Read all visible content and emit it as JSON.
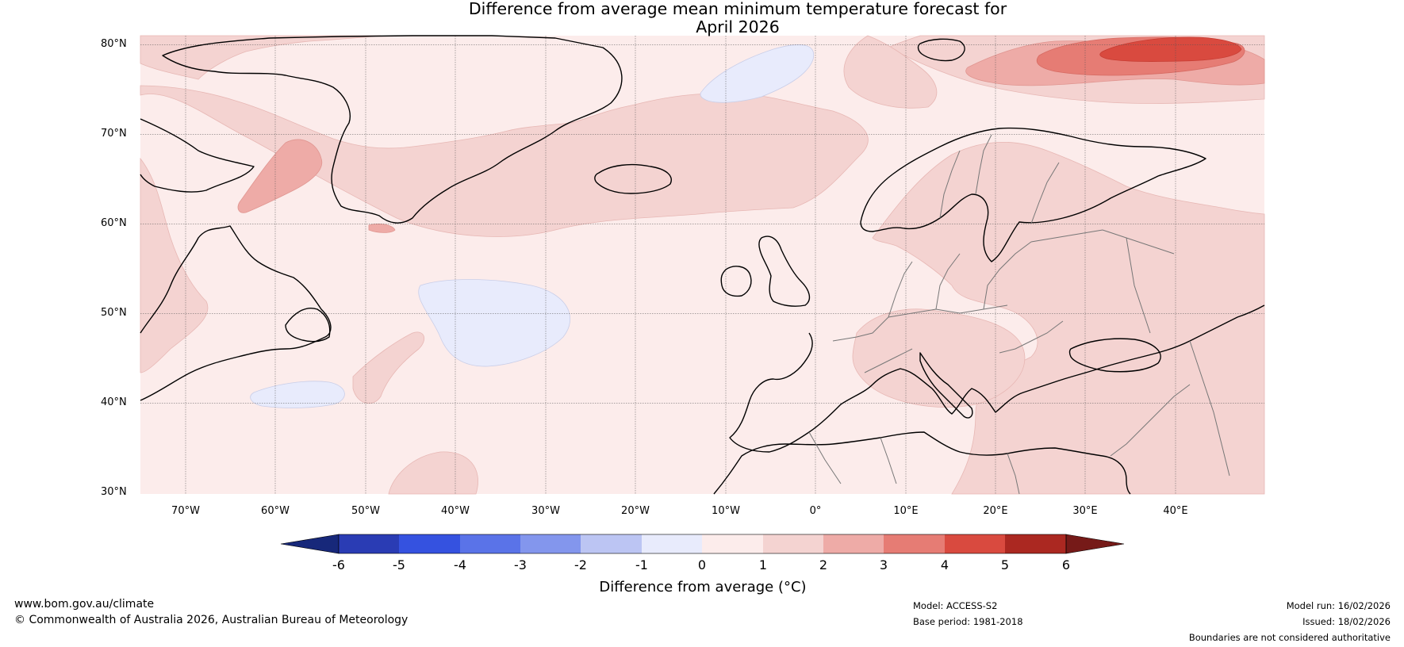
{
  "title": {
    "line1": "Difference from average mean minimum temperature forecast for",
    "line2": "April 2026"
  },
  "map": {
    "latitude_labels": [
      "80°N",
      "70°N",
      "60°N",
      "50°N",
      "40°N",
      "30°N"
    ],
    "longitude_labels": [
      "70°W",
      "60°W",
      "50°W",
      "40°W",
      "30°W",
      "20°W",
      "10°W",
      "0°",
      "10°E",
      "20°E",
      "30°E",
      "40°E"
    ],
    "extent": {
      "lon": [
        -75,
        50
      ],
      "lat": [
        30,
        81
      ]
    }
  },
  "colorbar": {
    "title": "Difference from average (°C)",
    "tick_labels": [
      "-6",
      "-5",
      "-4",
      "-3",
      "-2",
      "-1",
      "0",
      "1",
      "2",
      "3",
      "4",
      "5",
      "6"
    ],
    "colors": [
      "#17287a",
      "#2a3cb4",
      "#3552e0",
      "#5a73e8",
      "#8396ed",
      "#bcc5f3",
      "#e8ebfc",
      "#fceceb",
      "#f4d3d1",
      "#eeaba7",
      "#e67c74",
      "#d94a3f",
      "#ab2821",
      "#761a18"
    ]
  },
  "footer": {
    "website": "www.bom.gov.au/climate",
    "copyright": "© Commonwealth of Australia 2026, Australian Bureau of Meteorology",
    "model": "Model: ACCESS-S2",
    "base_period": "Base period: 1981-2018",
    "model_run": "Model run: 16/02/2026",
    "issued": "Issued: 18/02/2026",
    "disclaimer": "Boundaries are not considered authoritative"
  }
}
